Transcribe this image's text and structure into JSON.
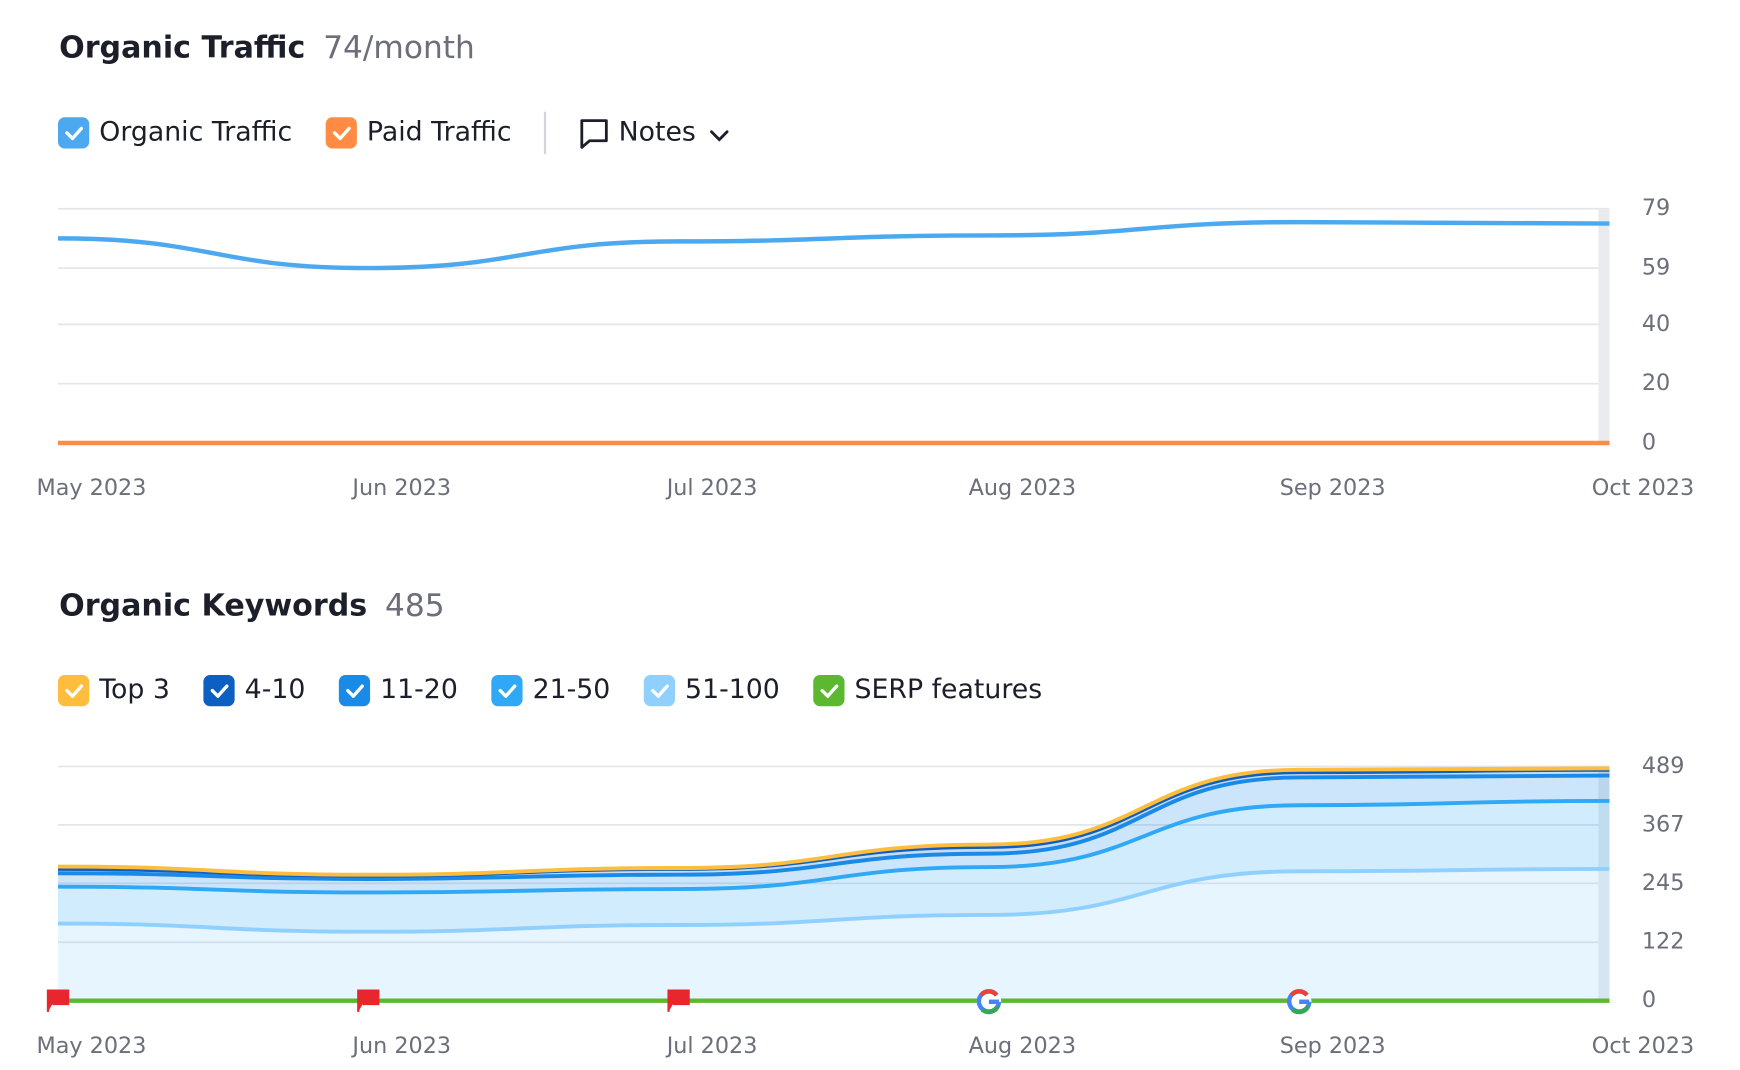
{
  "chart_data": [
    {
      "type": "line",
      "title": "Organic Traffic",
      "subtitle": "74/month",
      "notes": "Notes",
      "categories": [
        "May 2023",
        "Jun 2023",
        "Jul 2023",
        "Aug 2023",
        "Sep 2023",
        "Oct 2023"
      ],
      "series": [
        {
          "name": "Organic Traffic",
          "color": "#4da9ef",
          "values": [
            69,
            59,
            68,
            70,
            74.5,
            74
          ]
        },
        {
          "name": "Paid Traffic",
          "color": "#ff8c42",
          "values": [
            0,
            0,
            0,
            0,
            0,
            0
          ]
        }
      ],
      "ylim": [
        0,
        79
      ],
      "yticks": [
        0,
        20,
        40,
        59,
        79
      ],
      "grid": true
    },
    {
      "type": "stacked_area",
      "title": "Organic Keywords",
      "subtitle": "485",
      "categories": [
        "May 2023",
        "Jun 2023",
        "Jul 2023",
        "Aug 2023",
        "Sep 2023",
        "Oct 2023"
      ],
      "series": [
        {
          "name": "Top 3",
          "color": "#ffbd3d",
          "values": [
            5,
            2,
            2,
            5,
            5,
            3
          ]
        },
        {
          "name": "4-10",
          "color": "#0e5fc2",
          "values": [
            9,
            7,
            12,
            14,
            11,
            12
          ]
        },
        {
          "name": "11-20",
          "color": "#1a8ae8",
          "values": [
            28,
            28,
            30,
            28,
            58,
            53
          ]
        },
        {
          "name": "21-50",
          "color": "#2fa8f5",
          "values": [
            77,
            82,
            75,
            100,
            138,
            142
          ]
        },
        {
          "name": "51-100",
          "color": "#8fd0ff",
          "values": [
            161,
            144,
            158,
            179,
            270,
            275
          ]
        },
        {
          "name": "SERP features",
          "color": "#5cb82e",
          "values": [
            0,
            0,
            0,
            0,
            0,
            0
          ],
          "stacked": false
        }
      ],
      "ylim": [
        0,
        489
      ],
      "yticks": [
        0,
        122,
        245,
        367,
        489
      ],
      "grid": true
    }
  ]
}
